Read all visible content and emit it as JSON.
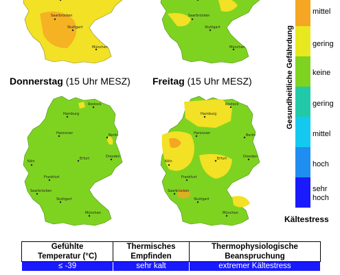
{
  "panels": [
    {
      "id": "mon",
      "title_day": "",
      "title_time": ""
    },
    {
      "id": "tue",
      "title_day": "",
      "title_time": ""
    },
    {
      "id": "thu",
      "title_day": "Donnerstag",
      "title_time": "(15 Uhr MESZ)"
    },
    {
      "id": "fri",
      "title_day": "Freitag",
      "title_time": "(15 Uhr MESZ)"
    }
  ],
  "cities": {
    "hamburg": "Hamburg",
    "rostock": "Rostock",
    "hannover": "Hannover",
    "berlin": "Berlin",
    "koeln": "Köln",
    "erfurt": "Erfurt",
    "dresden": "Dresden",
    "frankfurt": "Frankfurt",
    "saarbruecken": "Saarbrücken",
    "stuttgart": "Stuttgart",
    "muenchen": "München"
  },
  "legend": {
    "vertical_label": "Gesundheitliche Gefährdung",
    "levels": [
      {
        "label": "mittel",
        "color": "#f5a623"
      },
      {
        "label": "gering",
        "color": "#e8e820"
      },
      {
        "label": "keine",
        "color": "#7ed321"
      },
      {
        "label": "gering",
        "color": "#22c9a8"
      },
      {
        "label": "mittel",
        "color": "#14c9f0"
      },
      {
        "label": "hoch",
        "color": "#1f8ef0"
      },
      {
        "label": "sehr\nhoch",
        "color": "#1a1aff"
      }
    ],
    "cold_label": "Kältestress"
  },
  "table": {
    "headers": [
      "Gefühlte\nTemperatur (°C)",
      "Thermisches\nEmpfinden",
      "Thermophysiologische\nBeanspruchung"
    ],
    "rows": [
      [
        "≤ -39",
        "sehr kalt",
        "extremer Kältestress"
      ]
    ]
  },
  "colors": {
    "green": "#7ed321",
    "yellow": "#f2e124",
    "orange": "#f5a623",
    "blue": "#1a1aff"
  }
}
